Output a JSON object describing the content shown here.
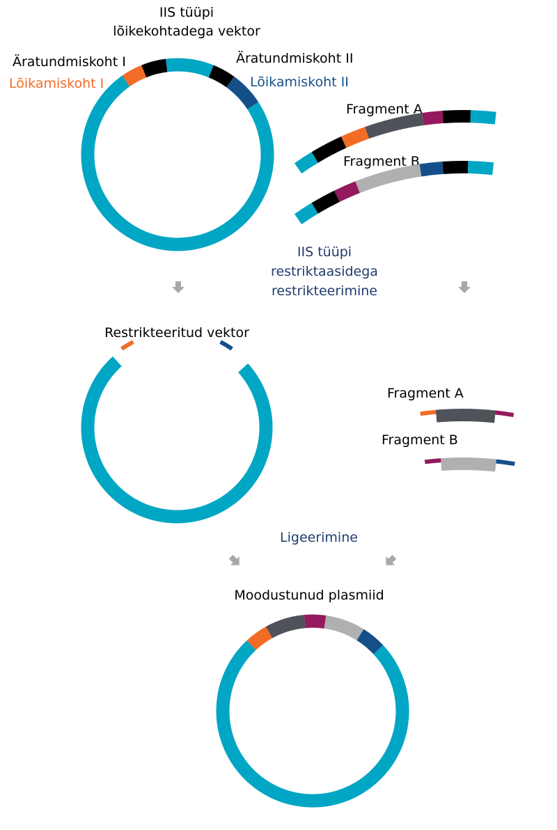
{
  "title": {
    "line1": "IIS tüüpi",
    "line2": "lõikekohtadega vektor"
  },
  "labels": {
    "recognition_site_1": "Äratundmiskoht I",
    "cut_site_1": "Lõikamiskoht I",
    "recognition_site_2": "Äratundmiskoht II",
    "cut_site_2": "Lõikamiskoht II",
    "fragment_a_top": "Fragment A",
    "fragment_b_top": "Fragment B",
    "step1_line1": "IIS tüüpi",
    "step1_line2": "restriktaasidega",
    "step1_line3": "restrikteerimine",
    "restricted_vector": "Restrikteeritud vektor",
    "fragment_a_bottom": "Fragment A",
    "fragment_b_bottom": "Fragment B",
    "step2": "Ligeerimine",
    "result": "Moodustunud plasmiid"
  },
  "colors": {
    "vector": "#00a6c4",
    "recognition": "#000000",
    "cut_site_1": "#f26c27",
    "cut_site_2": "#154f8a",
    "overhang_mid": "#95195e",
    "fragment_a_insert": "#4f5258",
    "fragment_b_insert": "#b0b0b0",
    "arrow": "#a8a8a8",
    "step_text": "#1f3b6e",
    "label_text": "#000000"
  }
}
